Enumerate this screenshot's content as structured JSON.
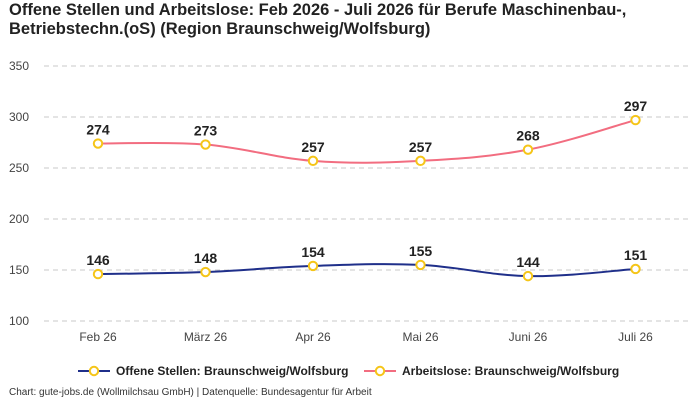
{
  "chart_data": {
    "type": "line",
    "title": "Offene Stellen und Arbeitslose: Feb 2026 - Juli 2026 für Berufe Maschinenbau-, Betriebstechn.(oS) (Region Braunschweig/Wolfsburg)",
    "categories": [
      "Feb 26",
      "März 26",
      "Apr 26",
      "Mai 26",
      "Juni 26",
      "Juli 26"
    ],
    "ylim": [
      100,
      350
    ],
    "yticks": [
      100,
      150,
      200,
      250,
      300,
      350
    ],
    "grid": true,
    "legend_position": "bottom",
    "series": [
      {
        "name": "Offene Stellen: Braunschweig/Wolfsburg",
        "color": "#1f2f8a",
        "values": [
          146,
          148,
          154,
          155,
          144,
          151
        ]
      },
      {
        "name": "Arbeitslose: Braunschweig/Wolfsburg",
        "color": "#f26d80",
        "values": [
          274,
          273,
          257,
          257,
          268,
          297
        ]
      }
    ],
    "marker": {
      "fill": "#ffffff",
      "stroke": "#f5c518"
    }
  },
  "footer": "Chart: gute-jobs.de (Wollmilchsau GmbH) | Datenquelle: Bundesagentur für Arbeit"
}
